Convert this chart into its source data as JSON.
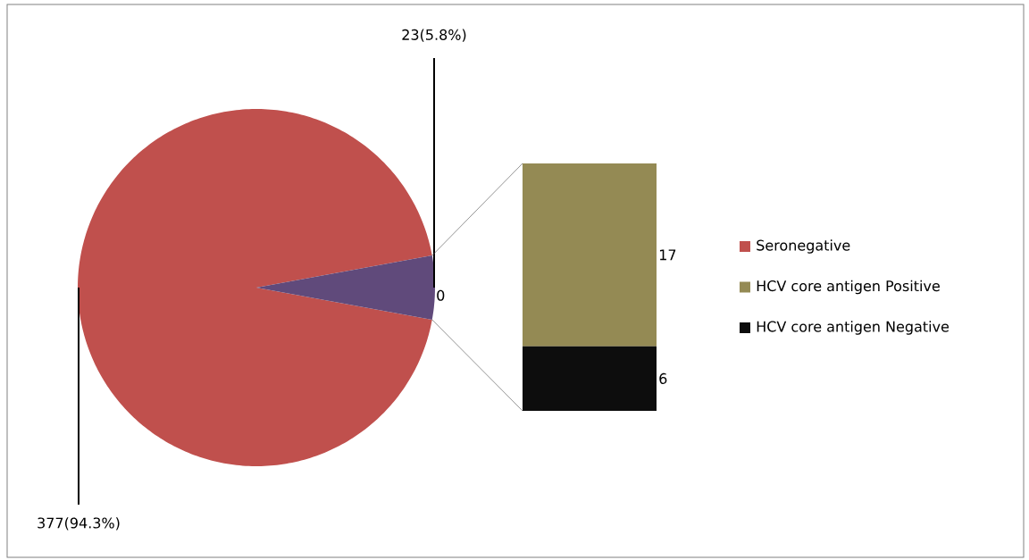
{
  "chart_data": [
    {
      "type": "pie",
      "categories": [
        "Seronegative",
        null
      ],
      "values": [
        377,
        23
      ],
      "colors": [
        "#c0504d",
        "#604a7b"
      ],
      "value_labels": [
        "377(94.3%)",
        "23(5.8%)"
      ],
      "annotations": [
        "0"
      ],
      "legend": "right"
    },
    {
      "type": "bar",
      "stacked": true,
      "categories": [
        null
      ],
      "series": [
        {
          "name": "HCV core antigen Negative",
          "color": "#0d0d0d",
          "values": [
            6
          ]
        },
        {
          "name": "HCV core antigen Positive",
          "color": "#948a54",
          "values": [
            17
          ]
        }
      ],
      "data_labels": true,
      "legend": "right"
    }
  ]
}
